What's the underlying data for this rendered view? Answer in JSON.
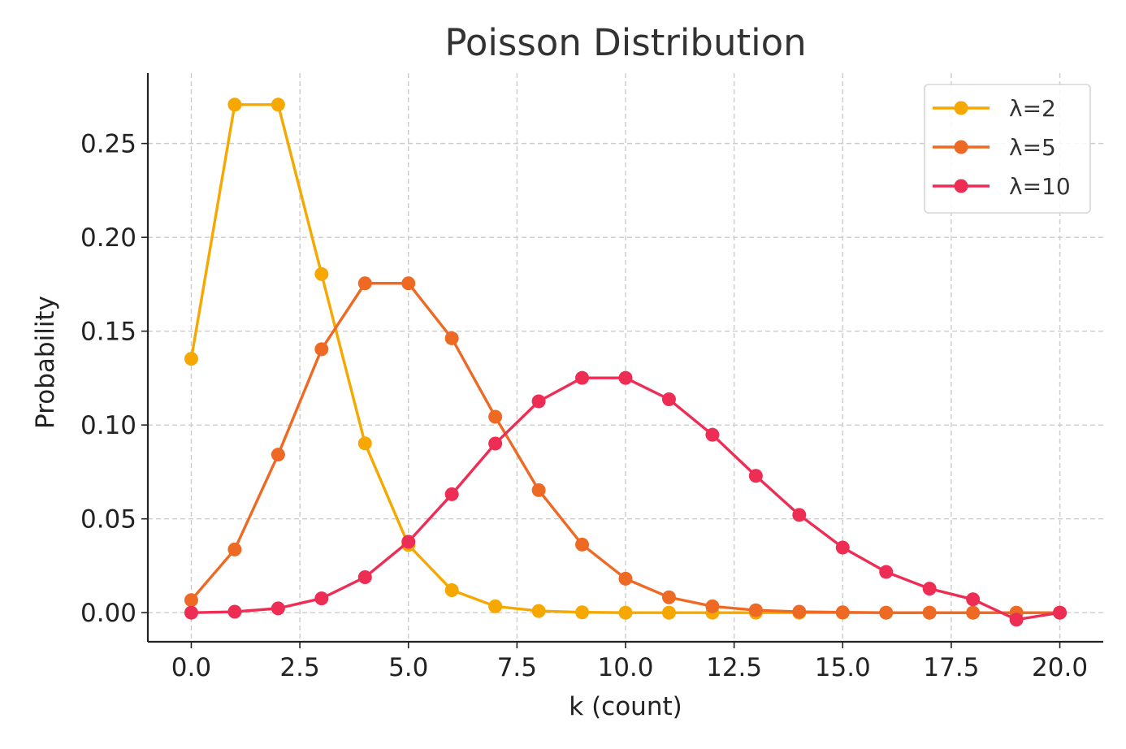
{
  "chart_data": {
    "type": "line",
    "title": "Poisson Distribution",
    "xlabel": "k (count)",
    "ylabel": "Probability",
    "xlim": [
      -1,
      21
    ],
    "ylim": [
      -0.0155,
      0.2875
    ],
    "xticks": [
      "0.0",
      "2.5",
      "5.0",
      "7.5",
      "10.0",
      "12.5",
      "15.0",
      "17.5",
      "20.0"
    ],
    "xtick_values": [
      0,
      2.5,
      5,
      7.5,
      10,
      12.5,
      15,
      17.5,
      20
    ],
    "yticks": [
      "0.00",
      "0.05",
      "0.10",
      "0.15",
      "0.20",
      "0.25"
    ],
    "ytick_values": [
      0,
      0.05,
      0.1,
      0.15,
      0.2,
      0.25
    ],
    "grid": true,
    "legend_position": "top-right",
    "x": [
      0,
      1,
      2,
      3,
      4,
      5,
      6,
      7,
      8,
      9,
      10,
      11,
      12,
      13,
      14,
      15,
      16,
      17,
      18,
      19,
      20
    ],
    "series": [
      {
        "name": "λ=2",
        "color": "#F6A800",
        "values": [
          0.1353,
          0.2707,
          0.2707,
          0.1804,
          0.0902,
          0.0361,
          0.012,
          0.0034,
          0.0009,
          0.0002,
          0.0,
          0.0,
          0.0,
          0.0,
          0.0,
          0.0,
          0.0,
          0.0,
          0.0,
          0.0,
          0.0
        ]
      },
      {
        "name": "λ=5",
        "color": "#EE6A24",
        "values": [
          0.0067,
          0.0337,
          0.0842,
          0.1404,
          0.1755,
          0.1755,
          0.1462,
          0.1044,
          0.0653,
          0.0363,
          0.0181,
          0.0082,
          0.0034,
          0.0013,
          0.0005,
          0.0002,
          0.0,
          0.0,
          0.0,
          0.0,
          0.0
        ]
      },
      {
        "name": "λ=10",
        "color": "#EE2D55",
        "values": [
          0.0,
          0.0005,
          0.0023,
          0.0076,
          0.0189,
          0.0378,
          0.0631,
          0.0901,
          0.1126,
          0.1251,
          0.1251,
          0.1137,
          0.0948,
          0.0729,
          0.0521,
          0.0347,
          0.0217,
          0.0128,
          0.0071,
          -0.0037,
          0.0
        ]
      }
    ]
  }
}
